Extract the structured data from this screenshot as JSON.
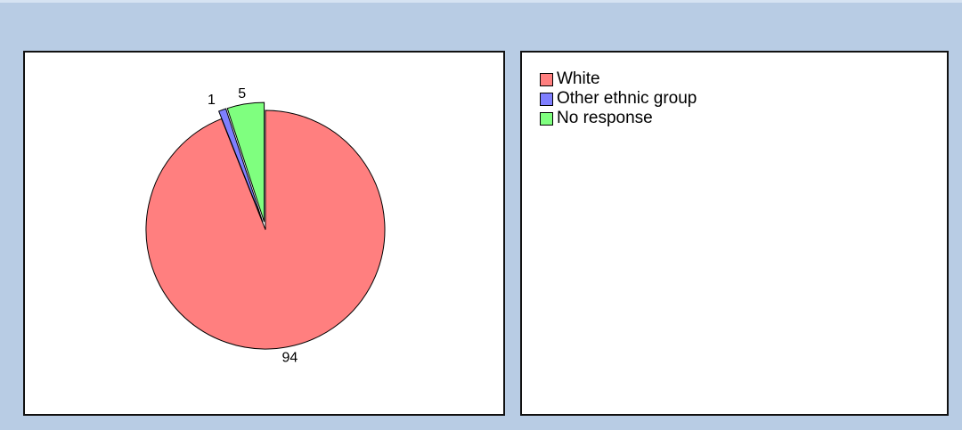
{
  "chart_data": {
    "type": "pie",
    "title": "",
    "slices": [
      {
        "label": "White",
        "value": 94,
        "color": "#ff7f7f"
      },
      {
        "label": "Other ethnic group",
        "value": 1,
        "color": "#7f7fff"
      },
      {
        "label": "No response",
        "value": 5,
        "color": "#7fff7f"
      }
    ],
    "legend_position": "right",
    "exploded_slices": [
      "Other ethnic group",
      "No response"
    ]
  }
}
